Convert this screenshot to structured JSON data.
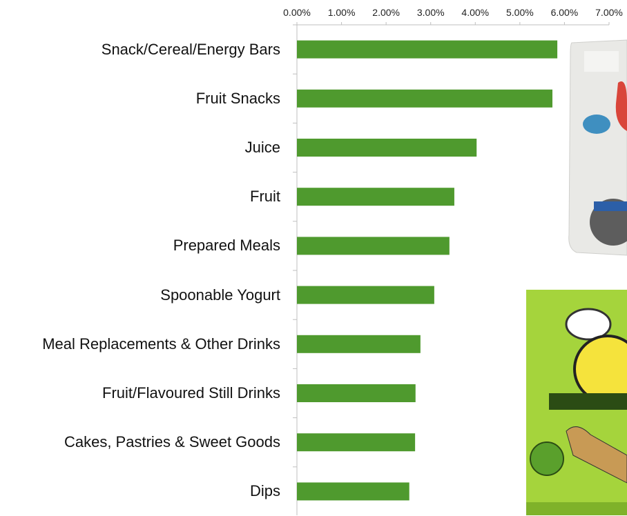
{
  "chart_data": {
    "type": "bar",
    "orientation": "horizontal",
    "categories": [
      "Snack/Cereal/Energy Bars",
      "Fruit Snacks",
      "Juice",
      "Fruit",
      "Prepared Meals",
      "Spoonable Yogurt",
      "Meal Replacements & Other Drinks",
      "Fruit/Flavoured Still Drinks",
      "Cakes, Pastries & Sweet Goods",
      "Dips"
    ],
    "values": [
      5.84,
      5.73,
      4.03,
      3.53,
      3.42,
      3.08,
      2.77,
      2.66,
      2.65,
      2.52
    ],
    "color": "#4f9a2e",
    "xlim": [
      0,
      7
    ],
    "xticks": [
      {
        "value": 0,
        "label": "0.00%"
      },
      {
        "value": 1,
        "label": "1.00%"
      },
      {
        "value": 2,
        "label": "2.00%"
      },
      {
        "value": 3,
        "label": "3.00%"
      },
      {
        "value": 4,
        "label": "4.00%"
      },
      {
        "value": 5,
        "label": "5.00%"
      },
      {
        "value": 6,
        "label": "6.00%"
      },
      {
        "value": 7,
        "label": "7.00%"
      }
    ],
    "xaxis_position": "top",
    "grid": false
  }
}
